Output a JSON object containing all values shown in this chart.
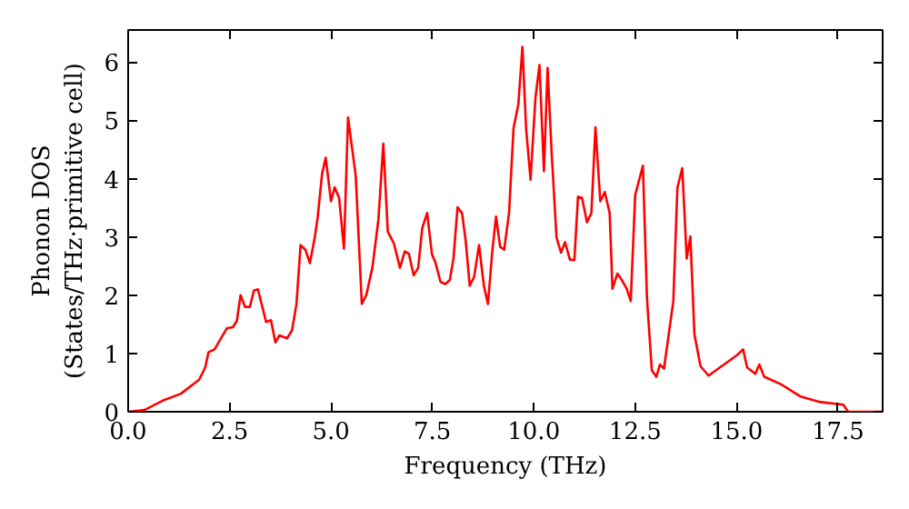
{
  "chart_data": {
    "type": "line",
    "xlabel": "Frequency (THz)",
    "ylabel": "Phonon DOS\n(States/THz·primitive cell)",
    "x": [
      0,
      0.4,
      0.85,
      1.3,
      1.75,
      1.9,
      1.98,
      2.13,
      2.43,
      2.58,
      2.68,
      2.77,
      2.88,
      3.0,
      3.1,
      3.2,
      3.4,
      3.52,
      3.63,
      3.73,
      3.92,
      4.04,
      4.15,
      4.25,
      4.37,
      4.48,
      4.6,
      4.67,
      4.78,
      4.87,
      5.0,
      5.09,
      5.2,
      5.32,
      5.42,
      5.61,
      5.76,
      5.87,
      6.02,
      6.17,
      6.29,
      6.4,
      6.55,
      6.7,
      6.82,
      6.92,
      7.04,
      7.15,
      7.25,
      7.37,
      7.49,
      7.57,
      7.7,
      7.82,
      7.93,
      8.02,
      8.12,
      8.23,
      8.32,
      8.42,
      8.53,
      8.65,
      8.77,
      8.87,
      8.98,
      9.07,
      9.17,
      9.27,
      9.39,
      9.5,
      9.62,
      9.72,
      9.81,
      9.92,
      10.04,
      10.14,
      10.25,
      10.34,
      10.44,
      10.56,
      10.67,
      10.77,
      10.89,
      11.0,
      11.09,
      11.19,
      11.31,
      11.42,
      11.52,
      11.64,
      11.75,
      11.87,
      11.94,
      12.06,
      12.17,
      12.29,
      12.39,
      12.5,
      12.69,
      12.79,
      12.91,
      13.02,
      13.11,
      13.21,
      13.44,
      13.54,
      13.66,
      13.77,
      13.86,
      13.96,
      14.11,
      14.31,
      15.01,
      15.16,
      15.26,
      15.46,
      15.56,
      15.68,
      16.1,
      16.58,
      17.03,
      17.63,
      17.75,
      18.6
    ],
    "series": [
      {
        "color": "#ff0000",
        "values": [
          0,
          0.03,
          0.19,
          0.31,
          0.55,
          0.76,
          1.02,
          1.07,
          1.43,
          1.45,
          1.56,
          2.0,
          1.8,
          1.8,
          2.08,
          2.1,
          1.54,
          1.57,
          1.19,
          1.31,
          1.26,
          1.4,
          1.85,
          2.86,
          2.78,
          2.55,
          2.99,
          3.32,
          4.08,
          4.36,
          3.61,
          3.85,
          3.67,
          2.8,
          5.05,
          4.05,
          1.85,
          2.0,
          2.47,
          3.3,
          4.6,
          3.09,
          2.89,
          2.47,
          2.75,
          2.71,
          2.34,
          2.47,
          3.15,
          3.41,
          2.7,
          2.57,
          2.23,
          2.19,
          2.26,
          2.63,
          3.51,
          3.41,
          2.94,
          2.16,
          2.32,
          2.86,
          2.16,
          1.85,
          2.78,
          3.35,
          2.83,
          2.78,
          3.41,
          4.86,
          5.28,
          6.26,
          4.86,
          3.98,
          5.38,
          5.95,
          4.13,
          5.9,
          4.44,
          2.99,
          2.73,
          2.91,
          2.61,
          2.6,
          3.69,
          3.67,
          3.25,
          3.41,
          4.88,
          3.61,
          3.77,
          3.41,
          2.11,
          2.37,
          2.26,
          2.11,
          1.9,
          3.72,
          4.22,
          1.95,
          0.71,
          0.6,
          0.81,
          0.74,
          1.9,
          3.84,
          4.18,
          2.63,
          3.01,
          1.33,
          0.78,
          0.62,
          0.97,
          1.07,
          0.76,
          0.65,
          0.81,
          0.6,
          0.47,
          0.26,
          0.17,
          0.12,
          0,
          0
        ]
      }
    ],
    "xlim": [
      0,
      18.6
    ],
    "ylim": [
      0,
      6.55
    ],
    "xticks": [
      {
        "value": 0,
        "label": "0.0"
      },
      {
        "value": 2.5,
        "label": "2.5"
      },
      {
        "value": 5,
        "label": "5.0"
      },
      {
        "value": 7.5,
        "label": "7.5"
      },
      {
        "value": 10,
        "label": "10.0"
      },
      {
        "value": 12.5,
        "label": "12.5"
      },
      {
        "value": 15,
        "label": "15.0"
      },
      {
        "value": 17.5,
        "label": "17.5"
      }
    ],
    "yticks": [
      0,
      1,
      2,
      3,
      4,
      5,
      6
    ],
    "grid": false
  }
}
